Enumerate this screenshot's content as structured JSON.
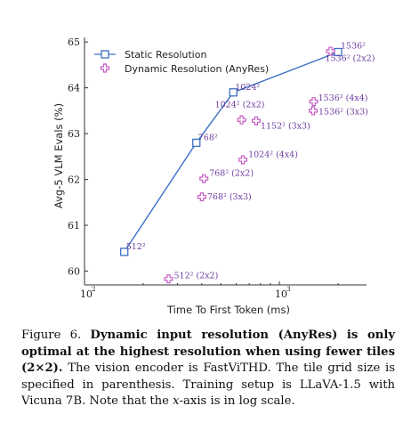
{
  "chart_data": {
    "type": "scatter",
    "xscale": "log",
    "xlabel": "Time To First Token (ms)",
    "ylabel": "Avg-5 VLM Evals (%)",
    "xlim": [
      100,
      2800
    ],
    "ylim": [
      59.7,
      65.1
    ],
    "x_tick_labels": [
      "10",
      "2",
      "10",
      "3"
    ],
    "y_ticks": [
      60,
      61,
      62,
      63,
      64,
      65
    ],
    "grid": false,
    "legend": "top-left",
    "series": [
      {
        "name": "Static Resolution",
        "color": "#3d6fc4",
        "marker": "square",
        "line": true,
        "points": [
          {
            "x": 160,
            "y": 60.42,
            "label": "512²"
          },
          {
            "x": 375,
            "y": 62.8,
            "label": "768²"
          },
          {
            "x": 580,
            "y": 63.9,
            "label": "1024²"
          },
          {
            "x": 2000,
            "y": 64.78,
            "label": "1536²"
          }
        ]
      },
      {
        "name": "Dynamic Resolution (AnyRes)",
        "color": "#c45bc4",
        "marker": "plus",
        "line": false,
        "points": [
          {
            "x": 270,
            "y": 59.83,
            "label": "512² (2x2)"
          },
          {
            "x": 400,
            "y": 61.62,
            "label": "768² (3x3)"
          },
          {
            "x": 410,
            "y": 62.02,
            "label": "768² (2x2)"
          },
          {
            "x": 650,
            "y": 62.43,
            "label": "1024² (4x4)"
          },
          {
            "x": 640,
            "y": 63.3,
            "label": "1024² (2x2)"
          },
          {
            "x": 760,
            "y": 63.28,
            "label": "1152² (3x3)"
          },
          {
            "x": 1500,
            "y": 63.7,
            "label": "1536² (4x4)"
          },
          {
            "x": 1490,
            "y": 63.5,
            "label": "1536² (3x3)"
          },
          {
            "x": 1830,
            "y": 64.8,
            "label": "1536² (2x2)"
          }
        ]
      }
    ]
  },
  "caption": {
    "figure_label": "Figure 6.",
    "bold_text": "Dynamic input resolution (AnyRes) is only optimal at the highest resolution when using fewer tiles (2×2).",
    "text_1": "The vision encoder is FastViTHD. The tile grid size is specified in parenthesis. Training setup is LLaVA-1.5 with Vicuna 7B. Note that the",
    "x_symbol": "x",
    "text_2": "-axis is in log scale."
  }
}
